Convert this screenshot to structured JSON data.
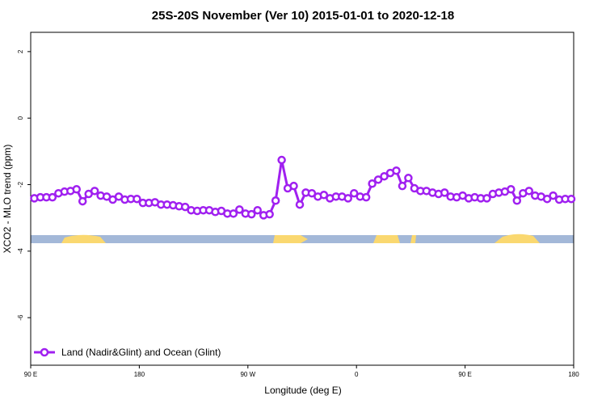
{
  "chart_data": {
    "type": "line",
    "title": "25S-20S November (Ver 10)   2015-01-01 to 2020-12-18",
    "x_label": "Longitude (deg E)",
    "y_label": "XCO2 - MLO trend (ppm)",
    "xlim": [
      90,
      540
    ],
    "ylim": [
      -7.43,
      2.58
    ],
    "xticks": [
      {
        "value": 90,
        "label": "90 E"
      },
      180,
      {
        "value": 270,
        "label": "90 W"
      },
      {
        "value": 360,
        "label": "0"
      },
      {
        "value": 450,
        "label": "90 E"
      },
      {
        "value": 540,
        "label": "180"
      }
    ],
    "yticks": [
      2,
      0,
      -2,
      -4,
      -6
    ],
    "legend": "bottom-left",
    "x": [
      93,
      98,
      103,
      108,
      113,
      118,
      123,
      128,
      133,
      138,
      143,
      148,
      153,
      158,
      163,
      168,
      173,
      178,
      183,
      188,
      193,
      198,
      203,
      208,
      213,
      218,
      223,
      228,
      233,
      238,
      243,
      248,
      253,
      258,
      263,
      268,
      273,
      278,
      283,
      288,
      293,
      298,
      303,
      308,
      313,
      318,
      323,
      328,
      333,
      338,
      343,
      348,
      353,
      358,
      363,
      368,
      373,
      378,
      383,
      388,
      393,
      398,
      403,
      408,
      413,
      418,
      423,
      428,
      433,
      438,
      443,
      448,
      453,
      458,
      463,
      468,
      473,
      478,
      483,
      488,
      493,
      498,
      503,
      508,
      513,
      518,
      523,
      528,
      533,
      538
    ],
    "series": [
      {
        "name": "Land (Nadir&Glint) and Ocean (Glint)",
        "color": "#a020f0",
        "values": [
          -2.41,
          -2.38,
          -2.38,
          -2.38,
          -2.26,
          -2.21,
          -2.19,
          -2.14,
          -2.5,
          -2.28,
          -2.19,
          -2.33,
          -2.36,
          -2.45,
          -2.36,
          -2.45,
          -2.43,
          -2.43,
          -2.55,
          -2.55,
          -2.53,
          -2.6,
          -2.6,
          -2.62,
          -2.65,
          -2.67,
          -2.77,
          -2.79,
          -2.77,
          -2.77,
          -2.82,
          -2.79,
          -2.87,
          -2.87,
          -2.75,
          -2.87,
          -2.89,
          -2.77,
          -2.92,
          -2.89,
          -2.48,
          -1.26,
          -2.11,
          -2.04,
          -2.6,
          -2.24,
          -2.26,
          -2.36,
          -2.31,
          -2.41,
          -2.36,
          -2.36,
          -2.41,
          -2.26,
          -2.36,
          -2.38,
          -1.97,
          -1.85,
          -1.75,
          -1.65,
          -1.58,
          -2.04,
          -1.8,
          -2.11,
          -2.19,
          -2.19,
          -2.24,
          -2.28,
          -2.24,
          -2.36,
          -2.38,
          -2.33,
          -2.41,
          -2.38,
          -2.41,
          -2.41,
          -2.28,
          -2.24,
          -2.21,
          -2.14,
          -2.48,
          -2.26,
          -2.19,
          -2.33,
          -2.36,
          -2.43,
          -2.33,
          -2.45,
          -2.43,
          -2.43
        ]
      }
    ]
  }
}
